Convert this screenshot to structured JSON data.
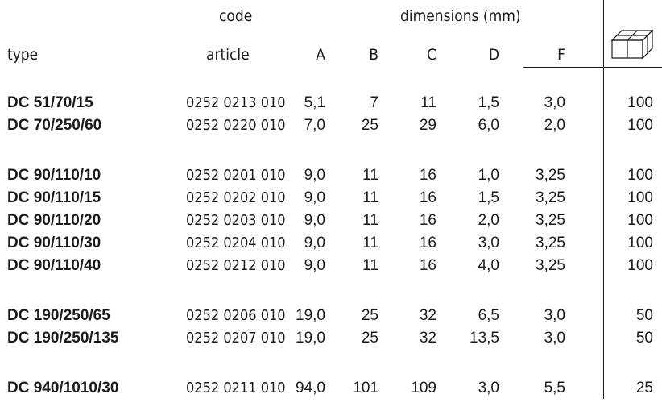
{
  "header": {
    "type": "type",
    "code_line1": "code",
    "code_line2": "article",
    "dimensions": "dimensions (mm)",
    "col_a": "A",
    "col_b": "B",
    "col_c": "C",
    "col_d": "D",
    "col_f": "F",
    "qty_icon": "box-icon"
  },
  "rows": [
    {
      "type": "DC 51/70/15",
      "code": "0252 0213 010",
      "a": "5,1",
      "b": "7",
      "c": "11",
      "d": "1,5",
      "f": "3,0",
      "qty": "100"
    },
    {
      "type": "DC 70/250/60",
      "code": "0252 0220 010",
      "a": "7,0",
      "b": "25",
      "c": "29",
      "d": "6,0",
      "f": "2,0",
      "qty": "100"
    },
    {
      "type": "DC 90/110/10",
      "code": "0252 0201 010",
      "a": "9,0",
      "b": "11",
      "c": "16",
      "d": "1,0",
      "f": "3,25",
      "qty": "100"
    },
    {
      "type": "DC 90/110/15",
      "code": "0252 0202 010",
      "a": "9,0",
      "b": "11",
      "c": "16",
      "d": "1,5",
      "f": "3,25",
      "qty": "100"
    },
    {
      "type": "DC 90/110/20",
      "code": "0252 0203 010",
      "a": "9,0",
      "b": "11",
      "c": "16",
      "d": "2,0",
      "f": "3,25",
      "qty": "100"
    },
    {
      "type": "DC 90/110/30",
      "code": "0252 0204 010",
      "a": "9,0",
      "b": "11",
      "c": "16",
      "d": "3,0",
      "f": "3,25",
      "qty": "100"
    },
    {
      "type": "DC 90/110/40",
      "code": "0252 0212 010",
      "a": "9,0",
      "b": "11",
      "c": "16",
      "d": "4,0",
      "f": "3,25",
      "qty": "100"
    },
    {
      "type": "DC 190/250/65",
      "code": "0252 0206 010",
      "a": "19,0",
      "b": "25",
      "c": "32",
      "d": "6,5",
      "f": "3,0",
      "qty": "50"
    },
    {
      "type": "DC 190/250/135",
      "code": "0252 0207 010",
      "a": "19,0",
      "b": "25",
      "c": "32",
      "d": "13,5",
      "f": "3,0",
      "qty": "50"
    },
    {
      "type": "DC 940/1010/30",
      "code": "0252 0211 010",
      "a": "94,0",
      "b": "101",
      "c": "109",
      "d": "3,0",
      "f": "5,5",
      "qty": "25"
    }
  ]
}
